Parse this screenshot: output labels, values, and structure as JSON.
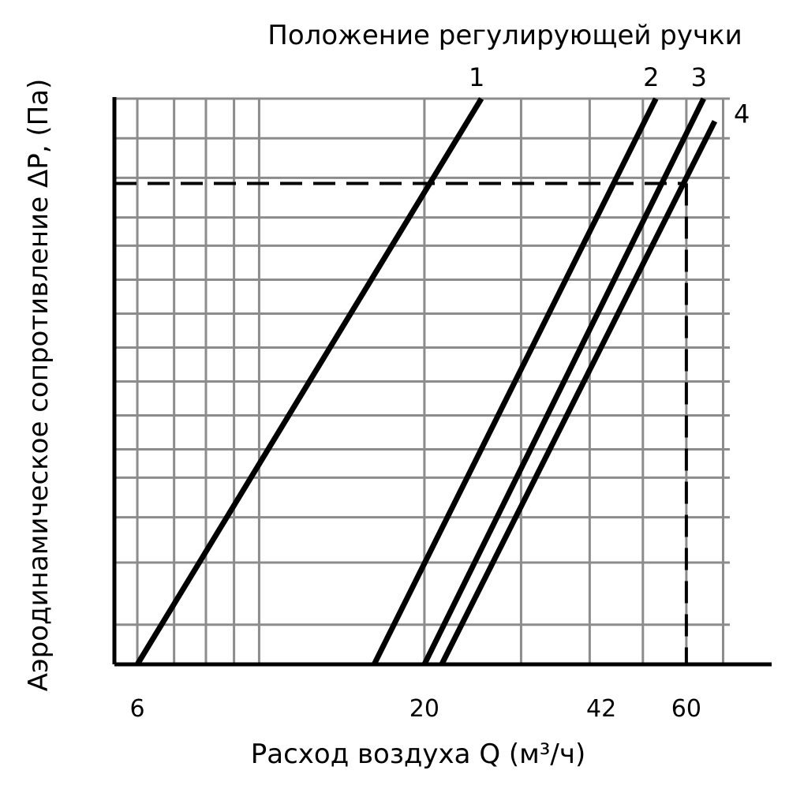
{
  "chart_data": {
    "type": "line",
    "title": "Положение регулирующей ручки",
    "xlabel": "Расход воздуха Q (м³/ч)",
    "ylabel": "Аэродинамическое сопротивление ΔP, (Па)",
    "x_scale": "log",
    "x_ticks": [
      "6",
      "20",
      "42",
      "60"
    ],
    "x_tick_values": [
      6,
      20,
      42,
      60
    ],
    "xlim": [
      5.45,
      72
    ],
    "ylim": [
      0,
      1
    ],
    "grid": true,
    "series": [
      {
        "name": "1",
        "points": [
          [
            6.0,
            0.0
          ],
          [
            25.4,
            1.0
          ]
        ]
      },
      {
        "name": "2",
        "points": [
          [
            16.2,
            0.0
          ],
          [
            52.8,
            1.0
          ]
        ]
      },
      {
        "name": "3",
        "points": [
          [
            20.0,
            0.0
          ],
          [
            64.5,
            1.0
          ]
        ]
      },
      {
        "name": "4",
        "points": [
          [
            21.5,
            0.0
          ],
          [
            67.6,
            0.96
          ]
        ]
      }
    ],
    "reference_lines": {
      "y": 0.85,
      "x": 60
    }
  }
}
